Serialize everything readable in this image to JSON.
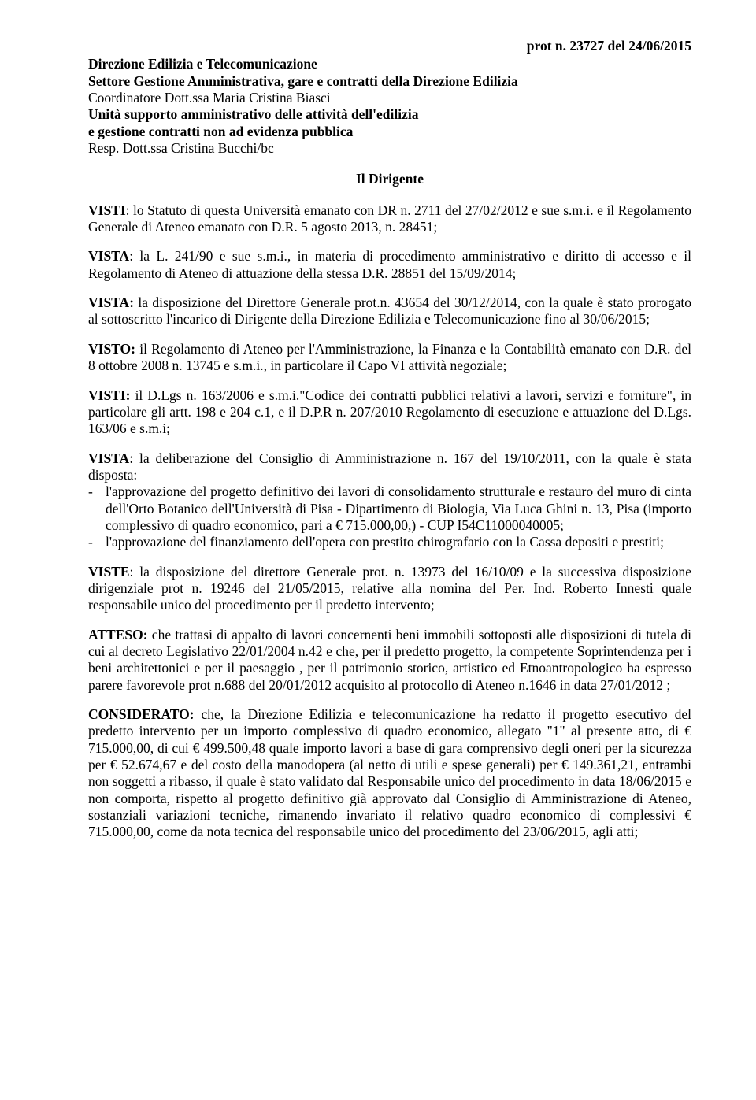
{
  "prot": "prot n.  23727 del 24/06/2015",
  "header": {
    "l1": "Direzione Edilizia  e  Telecomunicazione",
    "l2": "Settore Gestione Amministrativa, gare e contratti della Direzione Edilizia",
    "l3a": "Coordinatore ",
    "l3b": "Dott.ssa Maria Cristina Biasci",
    "l4": "Unità supporto amministrativo delle attività dell'edilizia",
    "l5": "e gestione contratti non ad evidenza pubblica",
    "l6a": "Resp. ",
    "l6b": "Dott.ssa Cristina Bucchi/bc"
  },
  "dirigente": "Il Dirigente",
  "p1": {
    "label": "VISTI",
    "text": ": lo Statuto di questa Università emanato con DR n. 2711 del 27/02/2012 e sue s.m.i. e il Regolamento Generale di Ateneo emanato con D.R. 5 agosto 2013, n. 28451;"
  },
  "p2": {
    "label": "VISTA",
    "text": ": la L. 241/90 e sue s.m.i., in materia di procedimento amministrativo e diritto di accesso e il Regolamento di Ateneo di attuazione della stessa D.R. 28851 del 15/09/2014;"
  },
  "p3": {
    "label": "VISTA:",
    "text": " la disposizione  del Direttore Generale prot.n. 43654 del 30/12/2014, con la quale è stato prorogato al sottoscritto l'incarico di Dirigente della Direzione Edilizia e Telecomunicazione fino al 30/06/2015;"
  },
  "p4": {
    "label": "VISTO:",
    "text": " il Regolamento di Ateneo per l'Amministrazione, la Finanza e la Contabilità emanato con D.R. del 8 ottobre 2008 n. 13745 e s.m.i., in particolare il Capo VI attività negoziale;"
  },
  "p5": {
    "label": "VISTI:",
    "text": " il D.Lgs n. 163/2006 e s.m.i.\"Codice dei contratti pubblici relativi a lavori, servizi e forniture\", in particolare gli artt. 198 e 204 c.1, e il D.P.R n. 207/2010 Regolamento di esecuzione e attuazione del D.Lgs. 163/06 e s.m.i;"
  },
  "p6": {
    "label": "VISTA",
    "text": ": la deliberazione del Consiglio di Amministrazione n. 167 del 19/10/2011, con la quale è stata disposta:"
  },
  "bullets": [
    "l'approvazione del progetto definitivo dei lavori di consolidamento strutturale e restauro del muro di cinta dell'Orto Botanico dell'Università di Pisa  - Dipartimento di Biologia, Via Luca Ghini n. 13, Pisa (importo complessivo di quadro economico, pari a € 715.000,00,)  -  CUP I54C11000040005;",
    "l'approvazione del finanziamento dell'opera con prestito chirografario con la Cassa depositi e prestiti;"
  ],
  "p7": {
    "label": "VISTE",
    "text": ": la disposizione del direttore Generale prot. n. 13973 del 16/10/09 e la successiva disposizione dirigenziale prot n. 19246 del 21/05/2015, relative alla nomina del Per. Ind. Roberto Innesti quale responsabile unico del procedimento per il predetto intervento;"
  },
  "p8": {
    "label": "ATTESO:",
    "text": " che trattasi di appalto di lavori concernenti beni immobili sottoposti alle disposizioni di tutela di cui al decreto Legislativo 22/01/2004 n.42 e che, per il predetto progetto, la competente Soprintendenza per i beni architettonici e per il paesaggio , per il patrimonio storico, artistico ed Etnoantropologico ha espresso parere favorevole prot n.688 del 20/01/2012 acquisito al protocollo di Ateneo n.1646 in data 27/01/2012 ;"
  },
  "p9": {
    "label": "CONSIDERATO:",
    "text": " che, la Direzione Edilizia e telecomunicazione ha redatto il progetto esecutivo del predetto intervento per un importo complessivo di quadro economico, allegato \"1\" al presente atto, di € 715.000,00, di cui € 499.500,48 quale importo lavori a base di gara comprensivo degli oneri per la sicurezza per € 52.674,67 e del costo della manodopera (al netto di utili e spese generali) per € 149.361,21, entrambi non soggetti a ribasso, il quale è stato validato dal Responsabile unico del procedimento in data 18/06/2015 e non comporta, rispetto al progetto definitivo già approvato dal Consiglio di Amministrazione di Ateneo, sostanziali variazioni tecniche, rimanendo invariato il relativo quadro economico di complessivi € 715.000,00, come da nota tecnica del responsabile unico del procedimento del 23/06/2015, agli atti;"
  }
}
